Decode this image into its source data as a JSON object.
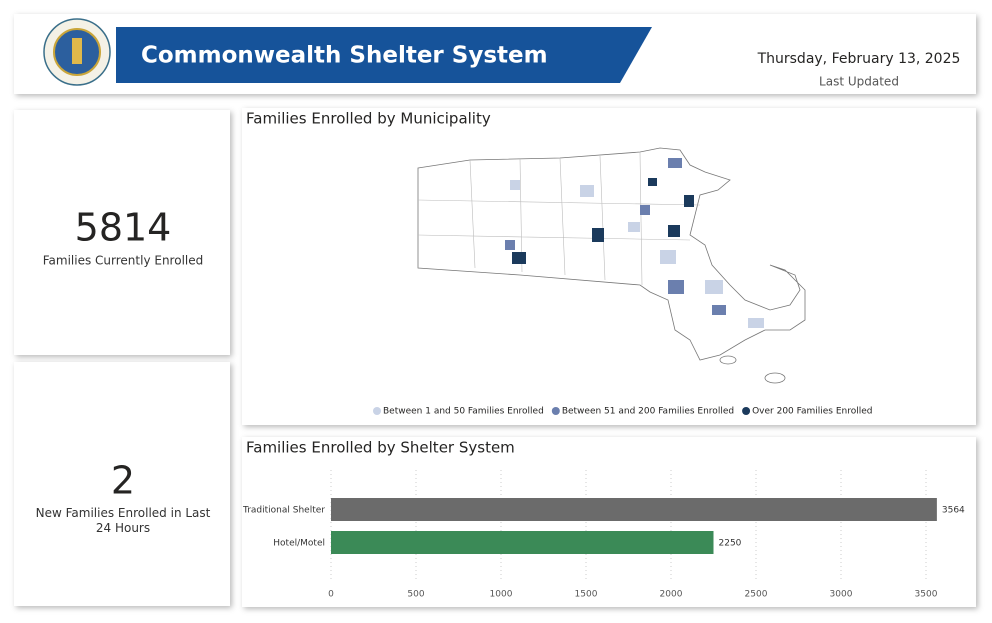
{
  "header": {
    "title": "Commonwealth Shelter System",
    "date": "Thursday, February 13, 2025",
    "date_caption": "Last Updated"
  },
  "kpis": [
    {
      "value": 5814,
      "label": "Families Currently Enrolled"
    },
    {
      "value": 2,
      "label": "New Families Enrolled in Last 24 Hours"
    }
  ],
  "map": {
    "title": "Families Enrolled by Municipality",
    "legend": [
      {
        "label": "Between 1 and 50 Families Enrolled",
        "color": "#c9d3e6"
      },
      {
        "label": "Between 51 and 200 Families Enrolled",
        "color": "#6b7fae"
      },
      {
        "label": "Over 200 Families Enrolled",
        "color": "#1b3a5c"
      }
    ]
  },
  "chart_data": {
    "type": "bar",
    "orientation": "horizontal",
    "title": "Families Enrolled by Shelter System",
    "categories": [
      "Traditional Shelter",
      "Hotel/Motel"
    ],
    "values": [
      3564,
      2250
    ],
    "colors": [
      "#6b6b6b",
      "#3b8a57"
    ],
    "xlim": [
      0,
      3600
    ],
    "xticks": [
      0,
      500,
      1000,
      1500,
      2000,
      2500,
      3000,
      3500
    ],
    "grid": true
  }
}
